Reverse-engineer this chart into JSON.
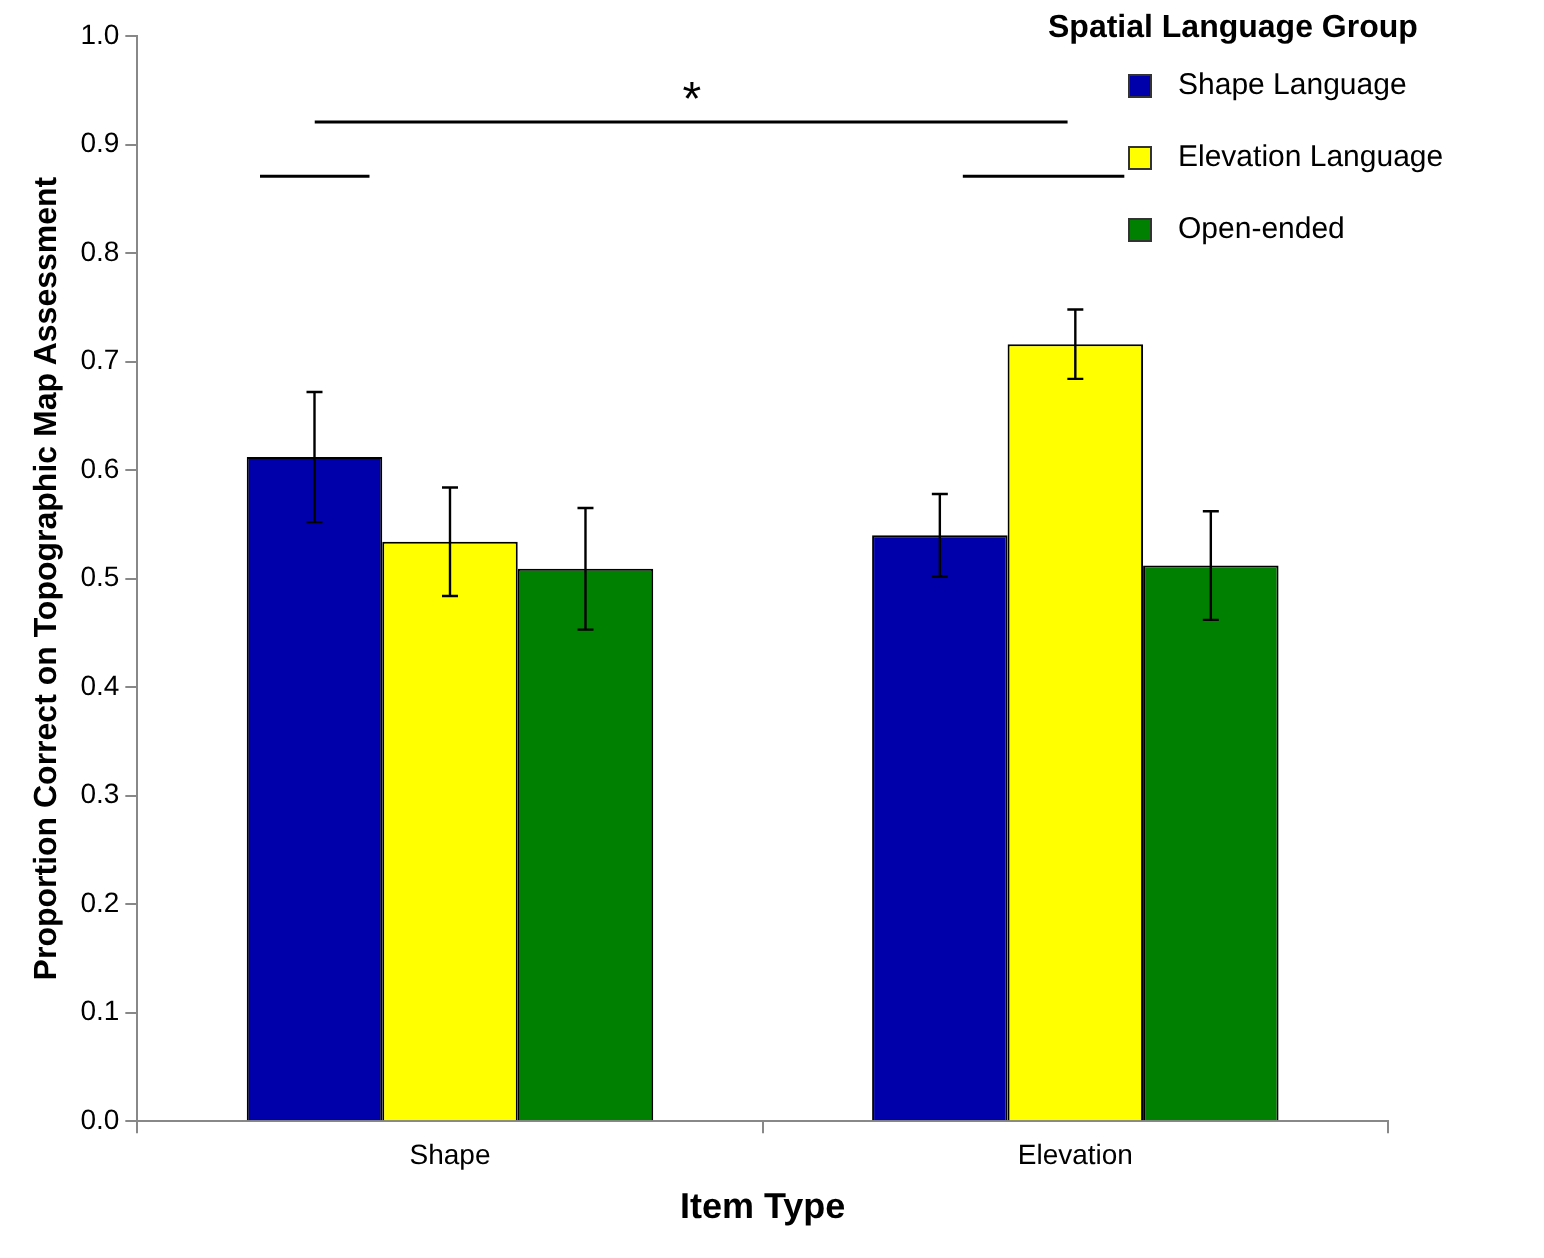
{
  "chart_data": {
    "type": "bar",
    "xlabel": "Item Type",
    "ylabel": "Proportion Correct on Topographic Map Assessment",
    "legend_title": "Spatial Language Group",
    "categories": [
      "Shape",
      "Elevation"
    ],
    "series": [
      {
        "name": "Shape Language",
        "color": "#0000aa",
        "values": [
          0.612,
          0.54
        ],
        "errors": [
          0.06,
          0.038
        ]
      },
      {
        "name": "Elevation Language",
        "color": "#ffff00",
        "values": [
          0.534,
          0.716
        ],
        "errors": [
          0.05,
          0.032
        ]
      },
      {
        "name": "Open-ended",
        "color": "#008000",
        "values": [
          0.509,
          0.512
        ],
        "errors": [
          0.056,
          0.05
        ]
      }
    ],
    "ylim": [
      0,
      1
    ],
    "yticks": [
      {
        "value": 0,
        "label": "0.0"
      },
      {
        "value": 0.1,
        "label": "0.1"
      },
      {
        "value": 0.2,
        "label": "0.2"
      },
      {
        "value": 0.3,
        "label": "0.3"
      },
      {
        "value": 0.4,
        "label": "0.4"
      },
      {
        "value": 0.5,
        "label": "0.5"
      },
      {
        "value": 0.6,
        "label": "0.6"
      },
      {
        "value": 0.7,
        "label": "0.7"
      },
      {
        "value": 0.8,
        "label": "0.8"
      },
      {
        "value": 0.9,
        "label": "0.9"
      },
      {
        "value": 1,
        "label": "1.0"
      }
    ],
    "annotations": [
      "*"
    ],
    "grid": false,
    "legend": "top right"
  }
}
